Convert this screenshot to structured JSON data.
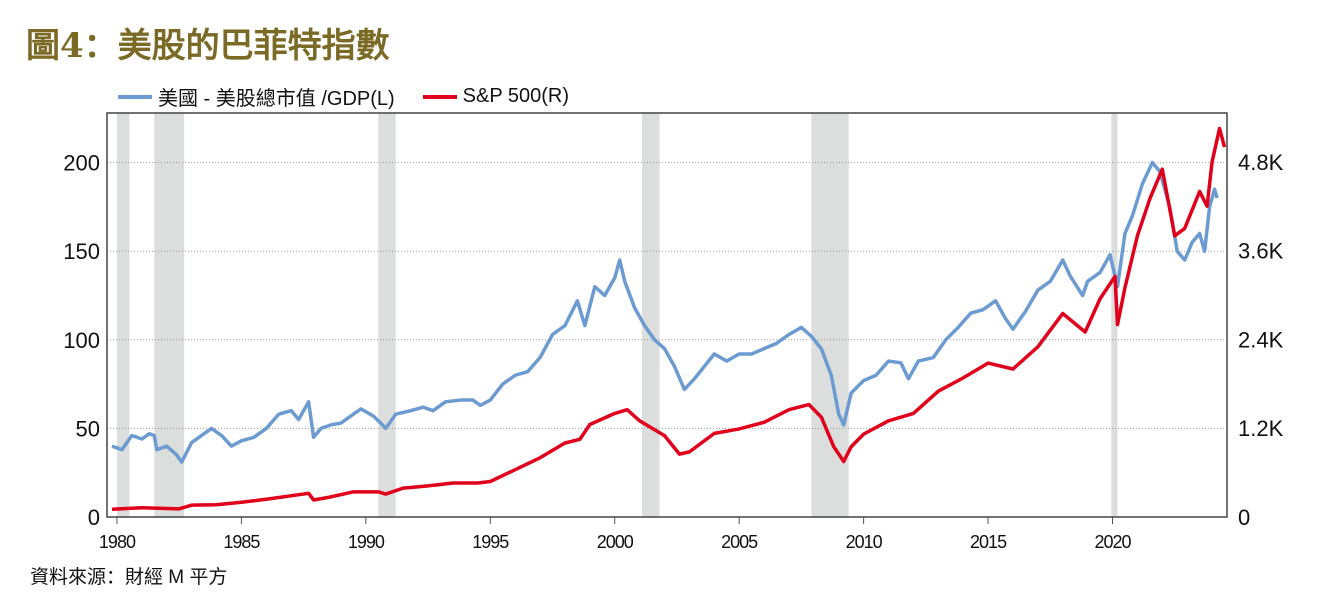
{
  "title": "圖4：美股的巴菲特指數",
  "source": "資料來源：財經 M 平方",
  "chart_data": {
    "type": "line",
    "title": "圖4：美股的巴菲特指數",
    "legend_position": "top-left",
    "grid": true,
    "xlim": [
      1979.6,
      2024.6
    ],
    "x_ticks": [
      1980,
      1985,
      1990,
      1995,
      2000,
      2005,
      2010,
      2015,
      2020
    ],
    "y_left": {
      "ylim": [
        0,
        228
      ],
      "ticks": [
        0,
        50,
        100,
        150,
        200
      ],
      "tick_labels": [
        "0",
        "50",
        "100",
        "150",
        "200"
      ]
    },
    "y_right": {
      "ylim": [
        0,
        5460
      ],
      "ticks": [
        0,
        1200,
        2400,
        3600,
        4800
      ],
      "tick_labels": [
        "0",
        "1.2K",
        "2.4K",
        "3.6K",
        "4.8K"
      ]
    },
    "recessions": [
      [
        1980.0,
        1980.5
      ],
      [
        1981.5,
        1982.7
      ],
      [
        1990.5,
        1991.2
      ],
      [
        2001.1,
        2001.8
      ],
      [
        2007.9,
        2009.4
      ],
      [
        2019.95,
        2020.2
      ]
    ],
    "series": [
      {
        "name": "美國 - 美股總市值 /GDP(L)",
        "axis": "left",
        "color": "#6b9bd1",
        "points": [
          [
            1979.8,
            40
          ],
          [
            1980.2,
            38
          ],
          [
            1980.6,
            46
          ],
          [
            1981.0,
            44
          ],
          [
            1981.3,
            47
          ],
          [
            1981.5,
            46
          ],
          [
            1981.6,
            38
          ],
          [
            1982.0,
            40
          ],
          [
            1982.4,
            35
          ],
          [
            1982.6,
            31
          ],
          [
            1983.0,
            42
          ],
          [
            1983.5,
            47
          ],
          [
            1983.8,
            50
          ],
          [
            1984.2,
            46
          ],
          [
            1984.6,
            40
          ],
          [
            1985.0,
            43
          ],
          [
            1985.5,
            45
          ],
          [
            1986.0,
            50
          ],
          [
            1986.5,
            58
          ],
          [
            1987.0,
            60
          ],
          [
            1987.3,
            55
          ],
          [
            1987.7,
            65
          ],
          [
            1987.9,
            45
          ],
          [
            1988.2,
            50
          ],
          [
            1988.6,
            52
          ],
          [
            1989.0,
            53
          ],
          [
            1989.5,
            58
          ],
          [
            1989.8,
            61
          ],
          [
            1990.3,
            57
          ],
          [
            1990.6,
            53
          ],
          [
            1990.8,
            50
          ],
          [
            1991.2,
            58
          ],
          [
            1991.8,
            60
          ],
          [
            1992.3,
            62
          ],
          [
            1992.7,
            60
          ],
          [
            1993.2,
            65
          ],
          [
            1993.8,
            66
          ],
          [
            1994.3,
            66
          ],
          [
            1994.6,
            63
          ],
          [
            1995.0,
            66
          ],
          [
            1995.5,
            75
          ],
          [
            1996.0,
            80
          ],
          [
            1996.5,
            82
          ],
          [
            1997.0,
            90
          ],
          [
            1997.5,
            103
          ],
          [
            1998.0,
            108
          ],
          [
            1998.5,
            122
          ],
          [
            1998.8,
            108
          ],
          [
            1999.2,
            130
          ],
          [
            1999.6,
            125
          ],
          [
            2000.0,
            135
          ],
          [
            2000.2,
            145
          ],
          [
            2000.4,
            133
          ],
          [
            2000.8,
            118
          ],
          [
            2001.2,
            108
          ],
          [
            2001.6,
            100
          ],
          [
            2002.0,
            95
          ],
          [
            2002.4,
            85
          ],
          [
            2002.8,
            72
          ],
          [
            2003.2,
            78
          ],
          [
            2003.6,
            85
          ],
          [
            2004.0,
            92
          ],
          [
            2004.5,
            88
          ],
          [
            2005.0,
            92
          ],
          [
            2005.5,
            92
          ],
          [
            2006.0,
            95
          ],
          [
            2006.5,
            98
          ],
          [
            2007.0,
            103
          ],
          [
            2007.5,
            107
          ],
          [
            2007.9,
            102
          ],
          [
            2008.3,
            95
          ],
          [
            2008.7,
            80
          ],
          [
            2009.0,
            58
          ],
          [
            2009.2,
            52
          ],
          [
            2009.5,
            70
          ],
          [
            2010.0,
            77
          ],
          [
            2010.5,
            80
          ],
          [
            2011.0,
            88
          ],
          [
            2011.5,
            87
          ],
          [
            2011.8,
            78
          ],
          [
            2012.2,
            88
          ],
          [
            2012.8,
            90
          ],
          [
            2013.3,
            100
          ],
          [
            2013.8,
            107
          ],
          [
            2014.3,
            115
          ],
          [
            2014.8,
            117
          ],
          [
            2015.3,
            122
          ],
          [
            2015.7,
            112
          ],
          [
            2016.0,
            106
          ],
          [
            2016.5,
            116
          ],
          [
            2017.0,
            128
          ],
          [
            2017.5,
            133
          ],
          [
            2018.0,
            145
          ],
          [
            2018.3,
            136
          ],
          [
            2018.8,
            125
          ],
          [
            2019.0,
            133
          ],
          [
            2019.5,
            138
          ],
          [
            2019.9,
            148
          ],
          [
            2020.2,
            130
          ],
          [
            2020.5,
            160
          ],
          [
            2020.8,
            170
          ],
          [
            2021.2,
            188
          ],
          [
            2021.6,
            200
          ],
          [
            2021.9,
            195
          ],
          [
            2022.3,
            175
          ],
          [
            2022.6,
            150
          ],
          [
            2022.9,
            145
          ],
          [
            2023.2,
            155
          ],
          [
            2023.5,
            160
          ],
          [
            2023.7,
            150
          ],
          [
            2023.9,
            175
          ],
          [
            2024.1,
            185
          ],
          [
            2024.2,
            180
          ]
        ]
      },
      {
        "name": "S&P 500(R)",
        "axis": "right",
        "color": "#e0001b",
        "points": [
          [
            1979.8,
            105
          ],
          [
            1981.0,
            125
          ],
          [
            1982.5,
            110
          ],
          [
            1983.0,
            160
          ],
          [
            1984.0,
            165
          ],
          [
            1985.0,
            200
          ],
          [
            1986.0,
            240
          ],
          [
            1987.7,
            320
          ],
          [
            1987.9,
            230
          ],
          [
            1988.5,
            265
          ],
          [
            1989.5,
            340
          ],
          [
            1990.5,
            340
          ],
          [
            1990.8,
            310
          ],
          [
            1991.5,
            390
          ],
          [
            1992.5,
            420
          ],
          [
            1993.5,
            460
          ],
          [
            1994.5,
            460
          ],
          [
            1995.0,
            480
          ],
          [
            1996.0,
            640
          ],
          [
            1997.0,
            800
          ],
          [
            1998.0,
            1000
          ],
          [
            1998.6,
            1050
          ],
          [
            1999.0,
            1250
          ],
          [
            2000.0,
            1400
          ],
          [
            2000.5,
            1450
          ],
          [
            2001.0,
            1300
          ],
          [
            2001.5,
            1200
          ],
          [
            2002.0,
            1100
          ],
          [
            2002.6,
            850
          ],
          [
            2003.0,
            880
          ],
          [
            2004.0,
            1130
          ],
          [
            2005.0,
            1190
          ],
          [
            2006.0,
            1280
          ],
          [
            2007.0,
            1450
          ],
          [
            2007.8,
            1520
          ],
          [
            2008.3,
            1350
          ],
          [
            2008.8,
            950
          ],
          [
            2009.2,
            750
          ],
          [
            2009.5,
            950
          ],
          [
            2010.0,
            1120
          ],
          [
            2011.0,
            1300
          ],
          [
            2012.0,
            1400
          ],
          [
            2013.0,
            1700
          ],
          [
            2014.0,
            1880
          ],
          [
            2015.0,
            2080
          ],
          [
            2016.0,
            2000
          ],
          [
            2017.0,
            2300
          ],
          [
            2018.0,
            2750
          ],
          [
            2018.9,
            2500
          ],
          [
            2019.5,
            2950
          ],
          [
            2020.1,
            3250
          ],
          [
            2020.2,
            2600
          ],
          [
            2020.5,
            3100
          ],
          [
            2021.0,
            3800
          ],
          [
            2021.5,
            4300
          ],
          [
            2022.0,
            4700
          ],
          [
            2022.5,
            3800
          ],
          [
            2022.9,
            3900
          ],
          [
            2023.5,
            4400
          ],
          [
            2023.8,
            4200
          ],
          [
            2024.0,
            4800
          ],
          [
            2024.3,
            5250
          ],
          [
            2024.5,
            5000
          ]
        ]
      }
    ]
  }
}
